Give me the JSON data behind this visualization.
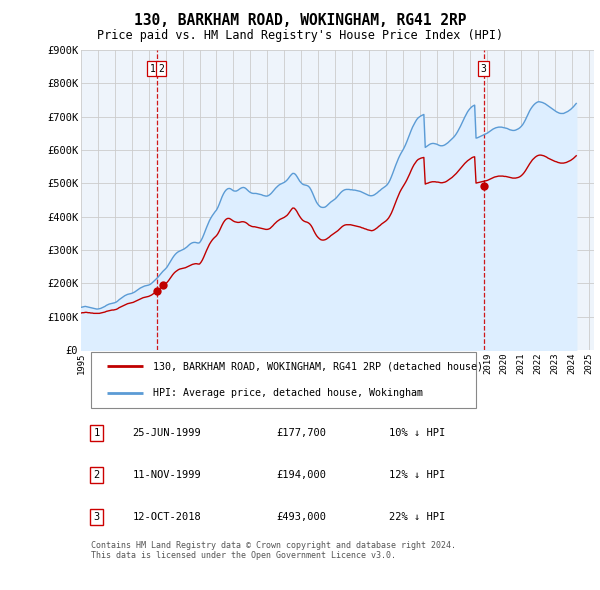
{
  "title": "130, BARKHAM ROAD, WOKINGHAM, RG41 2RP",
  "subtitle": "Price paid vs. HM Land Registry's House Price Index (HPI)",
  "ylim": [
    0,
    900000
  ],
  "yticks": [
    0,
    100000,
    200000,
    300000,
    400000,
    500000,
    600000,
    700000,
    800000,
    900000
  ],
  "ytick_labels": [
    "£0",
    "£100K",
    "£200K",
    "£300K",
    "£400K",
    "£500K",
    "£600K",
    "£700K",
    "£800K",
    "£900K"
  ],
  "hpi_color": "#5b9bd5",
  "hpi_fill_color": "#ddeeff",
  "price_color": "#c00000",
  "sale_marker_color": "#c00000",
  "dashed_line_color": "#cc0000",
  "background_color": "#ffffff",
  "chart_bg_color": "#eef4fb",
  "grid_color": "#cccccc",
  "sales": [
    {
      "x": 1999.48,
      "price": 177700,
      "label": "1"
    },
    {
      "x": 1999.86,
      "price": 194000,
      "label": "2"
    },
    {
      "x": 2018.79,
      "price": 493000,
      "label": "3"
    }
  ],
  "sale_vlines": [
    {
      "x": 1999.48,
      "labels": [
        "1",
        "2"
      ]
    },
    {
      "x": 2018.79,
      "labels": [
        "3"
      ]
    }
  ],
  "table_rows": [
    {
      "num": "1",
      "date": "25-JUN-1999",
      "price": "£177,700",
      "note": "10% ↓ HPI"
    },
    {
      "num": "2",
      "date": "11-NOV-1999",
      "price": "£194,000",
      "note": "12% ↓ HPI"
    },
    {
      "num": "3",
      "date": "12-OCT-2018",
      "price": "£493,000",
      "note": "22% ↓ HPI"
    }
  ],
  "legend_entries": [
    {
      "label": "130, BARKHAM ROAD, WOKINGHAM, RG41 2RP (detached house)",
      "color": "#c00000"
    },
    {
      "label": "HPI: Average price, detached house, Wokingham",
      "color": "#5b9bd5"
    }
  ],
  "footer": "Contains HM Land Registry data © Crown copyright and database right 2024.\nThis data is licensed under the Open Government Licence v3.0.",
  "hpi_years": [
    1995.0,
    1995.083,
    1995.167,
    1995.25,
    1995.333,
    1995.417,
    1995.5,
    1995.583,
    1995.667,
    1995.75,
    1995.833,
    1995.917,
    1996.0,
    1996.083,
    1996.167,
    1996.25,
    1996.333,
    1996.417,
    1996.5,
    1996.583,
    1996.667,
    1996.75,
    1996.833,
    1996.917,
    1997.0,
    1997.083,
    1997.167,
    1997.25,
    1997.333,
    1997.417,
    1997.5,
    1997.583,
    1997.667,
    1997.75,
    1997.833,
    1997.917,
    1998.0,
    1998.083,
    1998.167,
    1998.25,
    1998.333,
    1998.417,
    1998.5,
    1998.583,
    1998.667,
    1998.75,
    1998.833,
    1998.917,
    1999.0,
    1999.083,
    1999.167,
    1999.25,
    1999.333,
    1999.417,
    1999.5,
    1999.583,
    1999.667,
    1999.75,
    1999.833,
    1999.917,
    2000.0,
    2000.083,
    2000.167,
    2000.25,
    2000.333,
    2000.417,
    2000.5,
    2000.583,
    2000.667,
    2000.75,
    2000.833,
    2000.917,
    2001.0,
    2001.083,
    2001.167,
    2001.25,
    2001.333,
    2001.417,
    2001.5,
    2001.583,
    2001.667,
    2001.75,
    2001.833,
    2001.917,
    2002.0,
    2002.083,
    2002.167,
    2002.25,
    2002.333,
    2002.417,
    2002.5,
    2002.583,
    2002.667,
    2002.75,
    2002.833,
    2002.917,
    2003.0,
    2003.083,
    2003.167,
    2003.25,
    2003.333,
    2003.417,
    2003.5,
    2003.583,
    2003.667,
    2003.75,
    2003.833,
    2003.917,
    2004.0,
    2004.083,
    2004.167,
    2004.25,
    2004.333,
    2004.417,
    2004.5,
    2004.583,
    2004.667,
    2004.75,
    2004.833,
    2004.917,
    2005.0,
    2005.083,
    2005.167,
    2005.25,
    2005.333,
    2005.417,
    2005.5,
    2005.583,
    2005.667,
    2005.75,
    2005.833,
    2005.917,
    2006.0,
    2006.083,
    2006.167,
    2006.25,
    2006.333,
    2006.417,
    2006.5,
    2006.583,
    2006.667,
    2006.75,
    2006.833,
    2006.917,
    2007.0,
    2007.083,
    2007.167,
    2007.25,
    2007.333,
    2007.417,
    2007.5,
    2007.583,
    2007.667,
    2007.75,
    2007.833,
    2007.917,
    2008.0,
    2008.083,
    2008.167,
    2008.25,
    2008.333,
    2008.417,
    2008.5,
    2008.583,
    2008.667,
    2008.75,
    2008.833,
    2008.917,
    2009.0,
    2009.083,
    2009.167,
    2009.25,
    2009.333,
    2009.417,
    2009.5,
    2009.583,
    2009.667,
    2009.75,
    2009.833,
    2009.917,
    2010.0,
    2010.083,
    2010.167,
    2010.25,
    2010.333,
    2010.417,
    2010.5,
    2010.583,
    2010.667,
    2010.75,
    2010.833,
    2010.917,
    2011.0,
    2011.083,
    2011.167,
    2011.25,
    2011.333,
    2011.417,
    2011.5,
    2011.583,
    2011.667,
    2011.75,
    2011.833,
    2011.917,
    2012.0,
    2012.083,
    2012.167,
    2012.25,
    2012.333,
    2012.417,
    2012.5,
    2012.583,
    2012.667,
    2012.75,
    2012.833,
    2012.917,
    2013.0,
    2013.083,
    2013.167,
    2013.25,
    2013.333,
    2013.417,
    2013.5,
    2013.583,
    2013.667,
    2013.75,
    2013.833,
    2013.917,
    2014.0,
    2014.083,
    2014.167,
    2014.25,
    2014.333,
    2014.417,
    2014.5,
    2014.583,
    2014.667,
    2014.75,
    2014.833,
    2014.917,
    2015.0,
    2015.083,
    2015.167,
    2015.25,
    2015.333,
    2015.417,
    2015.5,
    2015.583,
    2015.667,
    2015.75,
    2015.833,
    2015.917,
    2016.0,
    2016.083,
    2016.167,
    2016.25,
    2016.333,
    2016.417,
    2016.5,
    2016.583,
    2016.667,
    2016.75,
    2016.833,
    2016.917,
    2017.0,
    2017.083,
    2017.167,
    2017.25,
    2017.333,
    2017.417,
    2017.5,
    2017.583,
    2017.667,
    2017.75,
    2017.833,
    2017.917,
    2018.0,
    2018.083,
    2018.167,
    2018.25,
    2018.333,
    2018.417,
    2018.5,
    2018.583,
    2018.667,
    2018.75,
    2018.833,
    2018.917,
    2019.0,
    2019.083,
    2019.167,
    2019.25,
    2019.333,
    2019.417,
    2019.5,
    2019.583,
    2019.667,
    2019.75,
    2019.833,
    2019.917,
    2020.0,
    2020.083,
    2020.167,
    2020.25,
    2020.333,
    2020.417,
    2020.5,
    2020.583,
    2020.667,
    2020.75,
    2020.833,
    2020.917,
    2021.0,
    2021.083,
    2021.167,
    2021.25,
    2021.333,
    2021.417,
    2021.5,
    2021.583,
    2021.667,
    2021.75,
    2021.833,
    2021.917,
    2022.0,
    2022.083,
    2022.167,
    2022.25,
    2022.333,
    2022.417,
    2022.5,
    2022.583,
    2022.667,
    2022.75,
    2022.833,
    2022.917,
    2023.0,
    2023.083,
    2023.167,
    2023.25,
    2023.333,
    2023.417,
    2023.5,
    2023.583,
    2023.667,
    2023.75,
    2023.833,
    2023.917,
    2024.0,
    2024.083,
    2024.167,
    2024.25
  ],
  "hpi_values": [
    128000,
    129000,
    130000,
    131000,
    130000,
    129000,
    128000,
    127000,
    126000,
    125000,
    124000,
    123000,
    123000,
    124000,
    125000,
    127000,
    129000,
    131000,
    134000,
    136000,
    138000,
    139000,
    140000,
    141000,
    142000,
    144000,
    147000,
    151000,
    154000,
    157000,
    160000,
    163000,
    165000,
    167000,
    168000,
    169000,
    170000,
    172000,
    174000,
    177000,
    180000,
    183000,
    186000,
    188000,
    190000,
    192000,
    193000,
    194000,
    195000,
    197000,
    200000,
    204000,
    208000,
    212000,
    216000,
    221000,
    226000,
    231000,
    236000,
    240000,
    244000,
    249000,
    256000,
    263000,
    270000,
    277000,
    283000,
    288000,
    292000,
    295000,
    297000,
    299000,
    301000,
    303000,
    306000,
    309000,
    313000,
    317000,
    320000,
    322000,
    323000,
    323000,
    322000,
    321000,
    322000,
    328000,
    336000,
    346000,
    357000,
    368000,
    378000,
    388000,
    396000,
    403000,
    409000,
    415000,
    420000,
    428000,
    438000,
    449000,
    460000,
    469000,
    476000,
    481000,
    484000,
    485000,
    484000,
    481000,
    478000,
    477000,
    477000,
    479000,
    482000,
    485000,
    487000,
    488000,
    487000,
    484000,
    480000,
    476000,
    473000,
    471000,
    470000,
    470000,
    470000,
    469000,
    468000,
    467000,
    466000,
    464000,
    463000,
    462000,
    462000,
    464000,
    467000,
    471000,
    476000,
    481000,
    486000,
    490000,
    494000,
    497000,
    499000,
    501000,
    503000,
    506000,
    510000,
    515000,
    521000,
    526000,
    530000,
    530000,
    527000,
    521000,
    514000,
    507000,
    502000,
    498000,
    496000,
    495000,
    494000,
    492000,
    488000,
    481000,
    472000,
    462000,
    452000,
    443000,
    437000,
    432000,
    429000,
    428000,
    428000,
    429000,
    432000,
    436000,
    440000,
    444000,
    447000,
    450000,
    453000,
    457000,
    462000,
    467000,
    472000,
    476000,
    479000,
    481000,
    482000,
    482000,
    482000,
    481000,
    481000,
    480000,
    480000,
    479000,
    478000,
    477000,
    476000,
    474000,
    472000,
    470000,
    468000,
    466000,
    464000,
    463000,
    463000,
    464000,
    466000,
    469000,
    472000,
    476000,
    479000,
    483000,
    486000,
    489000,
    492000,
    496000,
    502000,
    510000,
    520000,
    531000,
    543000,
    554000,
    565000,
    575000,
    584000,
    592000,
    599000,
    607000,
    616000,
    626000,
    637000,
    648000,
    659000,
    669000,
    677000,
    685000,
    692000,
    697000,
    700000,
    703000,
    705000,
    707000,
    608000,
    611000,
    614000,
    617000,
    619000,
    620000,
    620000,
    619000,
    618000,
    616000,
    614000,
    613000,
    613000,
    614000,
    616000,
    619000,
    622000,
    626000,
    630000,
    634000,
    638000,
    643000,
    649000,
    656000,
    664000,
    672000,
    681000,
    690000,
    699000,
    707000,
    715000,
    721000,
    726000,
    730000,
    733000,
    735000,
    636000,
    637000,
    639000,
    641000,
    643000,
    645000,
    647000,
    649000,
    651000,
    654000,
    657000,
    660000,
    663000,
    665000,
    667000,
    668000,
    669000,
    669000,
    669000,
    668000,
    667000,
    666000,
    665000,
    663000,
    661000,
    660000,
    659000,
    659000,
    660000,
    662000,
    664000,
    667000,
    671000,
    676000,
    683000,
    691000,
    700000,
    709000,
    718000,
    725000,
    731000,
    736000,
    740000,
    743000,
    745000,
    745000,
    744000,
    743000,
    741000,
    739000,
    736000,
    733000,
    730000,
    727000,
    724000,
    721000,
    718000,
    715000,
    713000,
    711000,
    710000,
    710000,
    710000,
    712000,
    714000,
    716000,
    719000,
    722000,
    726000,
    730000,
    735000,
    740000
  ],
  "pp_years": [
    1995.0,
    1995.083,
    1995.167,
    1995.25,
    1995.333,
    1995.417,
    1995.5,
    1995.583,
    1995.667,
    1995.75,
    1995.833,
    1995.917,
    1996.0,
    1996.083,
    1996.167,
    1996.25,
    1996.333,
    1996.417,
    1996.5,
    1996.583,
    1996.667,
    1996.75,
    1996.833,
    1996.917,
    1997.0,
    1997.083,
    1997.167,
    1997.25,
    1997.333,
    1997.417,
    1997.5,
    1997.583,
    1997.667,
    1997.75,
    1997.833,
    1997.917,
    1998.0,
    1998.083,
    1998.167,
    1998.25,
    1998.333,
    1998.417,
    1998.5,
    1998.583,
    1998.667,
    1998.75,
    1998.833,
    1998.917,
    1999.0,
    1999.083,
    1999.167,
    1999.25,
    1999.333,
    1999.417,
    1999.5,
    1999.583,
    1999.667,
    1999.75,
    1999.833,
    1999.917,
    2000.0,
    2000.083,
    2000.167,
    2000.25,
    2000.333,
    2000.417,
    2000.5,
    2000.583,
    2000.667,
    2000.75,
    2000.833,
    2000.917,
    2001.0,
    2001.083,
    2001.167,
    2001.25,
    2001.333,
    2001.417,
    2001.5,
    2001.583,
    2001.667,
    2001.75,
    2001.833,
    2001.917,
    2002.0,
    2002.083,
    2002.167,
    2002.25,
    2002.333,
    2002.417,
    2002.5,
    2002.583,
    2002.667,
    2002.75,
    2002.833,
    2002.917,
    2003.0,
    2003.083,
    2003.167,
    2003.25,
    2003.333,
    2003.417,
    2003.5,
    2003.583,
    2003.667,
    2003.75,
    2003.833,
    2003.917,
    2004.0,
    2004.083,
    2004.167,
    2004.25,
    2004.333,
    2004.417,
    2004.5,
    2004.583,
    2004.667,
    2004.75,
    2004.833,
    2004.917,
    2005.0,
    2005.083,
    2005.167,
    2005.25,
    2005.333,
    2005.417,
    2005.5,
    2005.583,
    2005.667,
    2005.75,
    2005.833,
    2005.917,
    2006.0,
    2006.083,
    2006.167,
    2006.25,
    2006.333,
    2006.417,
    2006.5,
    2006.583,
    2006.667,
    2006.75,
    2006.833,
    2006.917,
    2007.0,
    2007.083,
    2007.167,
    2007.25,
    2007.333,
    2007.417,
    2007.5,
    2007.583,
    2007.667,
    2007.75,
    2007.833,
    2007.917,
    2008.0,
    2008.083,
    2008.167,
    2008.25,
    2008.333,
    2008.417,
    2008.5,
    2008.583,
    2008.667,
    2008.75,
    2008.833,
    2008.917,
    2009.0,
    2009.083,
    2009.167,
    2009.25,
    2009.333,
    2009.417,
    2009.5,
    2009.583,
    2009.667,
    2009.75,
    2009.833,
    2009.917,
    2010.0,
    2010.083,
    2010.167,
    2010.25,
    2010.333,
    2010.417,
    2010.5,
    2010.583,
    2010.667,
    2010.75,
    2010.833,
    2010.917,
    2011.0,
    2011.083,
    2011.167,
    2011.25,
    2011.333,
    2011.417,
    2011.5,
    2011.583,
    2011.667,
    2011.75,
    2011.833,
    2011.917,
    2012.0,
    2012.083,
    2012.167,
    2012.25,
    2012.333,
    2012.417,
    2012.5,
    2012.583,
    2012.667,
    2012.75,
    2012.833,
    2012.917,
    2013.0,
    2013.083,
    2013.167,
    2013.25,
    2013.333,
    2013.417,
    2013.5,
    2013.583,
    2013.667,
    2013.75,
    2013.833,
    2013.917,
    2014.0,
    2014.083,
    2014.167,
    2014.25,
    2014.333,
    2014.417,
    2014.5,
    2014.583,
    2014.667,
    2014.75,
    2014.833,
    2014.917,
    2015.0,
    2015.083,
    2015.167,
    2015.25,
    2015.333,
    2015.417,
    2015.5,
    2015.583,
    2015.667,
    2015.75,
    2015.833,
    2015.917,
    2016.0,
    2016.083,
    2016.167,
    2016.25,
    2016.333,
    2016.417,
    2016.5,
    2016.583,
    2016.667,
    2016.75,
    2016.833,
    2016.917,
    2017.0,
    2017.083,
    2017.167,
    2017.25,
    2017.333,
    2017.417,
    2017.5,
    2017.583,
    2017.667,
    2017.75,
    2017.833,
    2017.917,
    2018.0,
    2018.083,
    2018.167,
    2018.25,
    2018.333,
    2018.417,
    2018.5,
    2018.583,
    2018.667,
    2018.75,
    2018.833,
    2018.917,
    2019.0,
    2019.083,
    2019.167,
    2019.25,
    2019.333,
    2019.417,
    2019.5,
    2019.583,
    2019.667,
    2019.75,
    2019.833,
    2019.917,
    2020.0,
    2020.083,
    2020.167,
    2020.25,
    2020.333,
    2020.417,
    2020.5,
    2020.583,
    2020.667,
    2020.75,
    2020.833,
    2020.917,
    2021.0,
    2021.083,
    2021.167,
    2021.25,
    2021.333,
    2021.417,
    2021.5,
    2021.583,
    2021.667,
    2021.75,
    2021.833,
    2021.917,
    2022.0,
    2022.083,
    2022.167,
    2022.25,
    2022.333,
    2022.417,
    2022.5,
    2022.583,
    2022.667,
    2022.75,
    2022.833,
    2022.917,
    2023.0,
    2023.083,
    2023.167,
    2023.25,
    2023.333,
    2023.417,
    2023.5,
    2023.583,
    2023.667,
    2023.75,
    2023.833,
    2023.917,
    2024.0,
    2024.083,
    2024.167,
    2024.25
  ],
  "pp_values": [
    111000,
    112000,
    112000,
    113000,
    113000,
    112000,
    112000,
    111000,
    111000,
    110000,
    110000,
    110000,
    110000,
    110000,
    111000,
    112000,
    113000,
    114000,
    116000,
    117000,
    118000,
    119000,
    120000,
    120000,
    121000,
    122000,
    124000,
    127000,
    129000,
    131000,
    133000,
    135000,
    137000,
    139000,
    140000,
    141000,
    142000,
    143000,
    145000,
    147000,
    149000,
    151000,
    153000,
    155000,
    157000,
    158000,
    159000,
    160000,
    161000,
    163000,
    165000,
    168000,
    171000,
    174000,
    177000,
    181000,
    185000,
    189000,
    193000,
    196000,
    199000,
    203000,
    208000,
    214000,
    220000,
    226000,
    231000,
    235000,
    238000,
    241000,
    243000,
    244000,
    245000,
    246000,
    247000,
    249000,
    251000,
    253000,
    255000,
    257000,
    258000,
    259000,
    259000,
    258000,
    258000,
    263000,
    270000,
    279000,
    289000,
    299000,
    308000,
    317000,
    324000,
    330000,
    335000,
    339000,
    343000,
    349000,
    357000,
    366000,
    375000,
    383000,
    389000,
    393000,
    395000,
    395000,
    393000,
    390000,
    387000,
    385000,
    384000,
    383000,
    383000,
    384000,
    385000,
    385000,
    384000,
    382000,
    379000,
    375000,
    373000,
    371000,
    370000,
    370000,
    369000,
    368000,
    367000,
    366000,
    365000,
    364000,
    363000,
    362000,
    362000,
    363000,
    365000,
    369000,
    373000,
    378000,
    382000,
    386000,
    389000,
    392000,
    394000,
    396000,
    398000,
    401000,
    404000,
    409000,
    415000,
    421000,
    426000,
    426000,
    422000,
    416000,
    408000,
    401000,
    395000,
    390000,
    387000,
    385000,
    384000,
    382000,
    379000,
    374000,
    367000,
    358000,
    350000,
    343000,
    338000,
    334000,
    331000,
    330000,
    330000,
    331000,
    333000,
    336000,
    339000,
    343000,
    346000,
    349000,
    352000,
    355000,
    358000,
    362000,
    366000,
    370000,
    373000,
    375000,
    376000,
    376000,
    376000,
    376000,
    375000,
    374000,
    373000,
    372000,
    371000,
    370000,
    369000,
    367000,
    366000,
    364000,
    363000,
    361000,
    360000,
    359000,
    358000,
    359000,
    361000,
    364000,
    367000,
    371000,
    374000,
    378000,
    381000,
    384000,
    387000,
    391000,
    396000,
    403000,
    411000,
    421000,
    432000,
    443000,
    454000,
    464000,
    474000,
    482000,
    489000,
    496000,
    503000,
    511000,
    520000,
    529000,
    539000,
    548000,
    556000,
    562000,
    568000,
    572000,
    574000,
    576000,
    577000,
    578000,
    498000,
    500000,
    501000,
    503000,
    504000,
    505000,
    505000,
    505000,
    504000,
    504000,
    503000,
    502000,
    502000,
    503000,
    504000,
    506000,
    509000,
    512000,
    515000,
    518000,
    522000,
    526000,
    530000,
    535000,
    540000,
    545000,
    550000,
    555000,
    560000,
    564000,
    568000,
    571000,
    574000,
    577000,
    579000,
    580000,
    501000,
    502000,
    503000,
    504000,
    505000,
    506000,
    507000,
    508000,
    509000,
    511000,
    513000,
    515000,
    517000,
    519000,
    520000,
    521000,
    522000,
    522000,
    522000,
    522000,
    521000,
    521000,
    520000,
    519000,
    518000,
    517000,
    516000,
    516000,
    516000,
    517000,
    518000,
    520000,
    523000,
    527000,
    532000,
    538000,
    545000,
    552000,
    559000,
    565000,
    571000,
    575000,
    579000,
    582000,
    584000,
    585000,
    585000,
    584000,
    583000,
    581000,
    579000,
    576000,
    574000,
    572000,
    570000,
    568000,
    566000,
    565000,
    563000,
    562000,
    561000,
    561000,
    561000,
    562000,
    563000,
    565000,
    567000,
    569000,
    572000,
    575000,
    579000,
    583000
  ]
}
